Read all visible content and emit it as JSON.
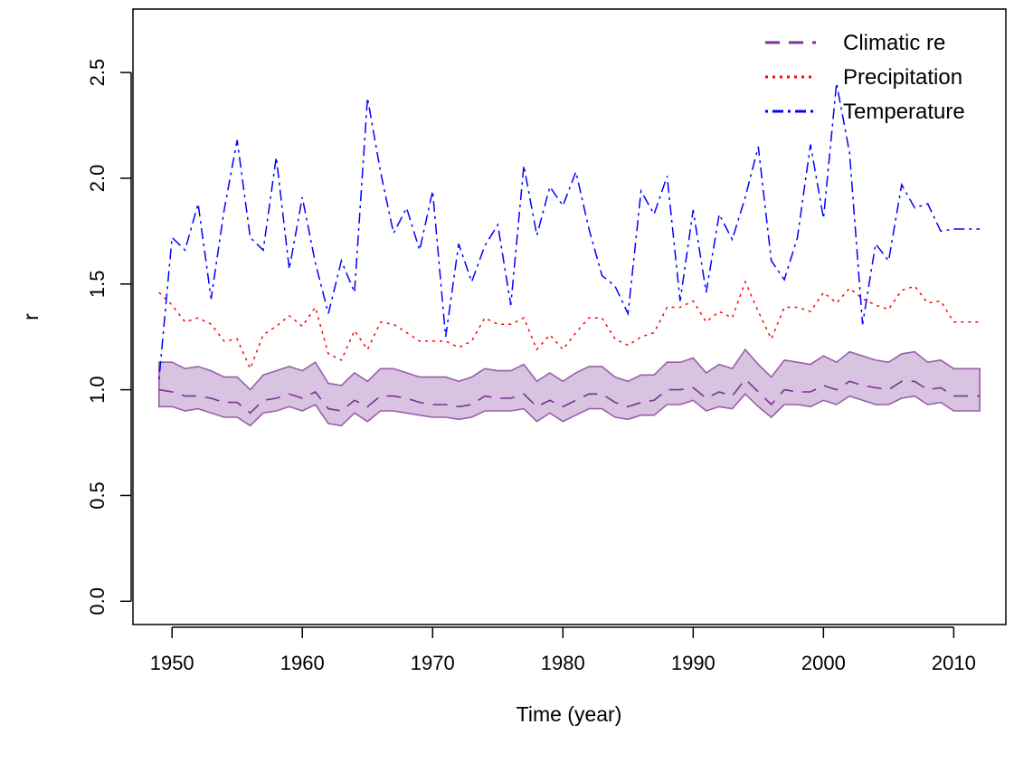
{
  "chart_data": {
    "type": "line",
    "xlabel": "Time (year)",
    "ylabel": "r",
    "xlim": [
      1947,
      2014
    ],
    "ylim": [
      -0.11,
      2.8
    ],
    "x_ticks": [
      1950,
      1960,
      1970,
      1980,
      1990,
      2000,
      2010
    ],
    "y_ticks": [
      0.0,
      0.5,
      1.0,
      1.5,
      2.0,
      2.5
    ],
    "x_tick_labels": [
      "1950",
      "1960",
      "1970",
      "1980",
      "1990",
      "2000",
      "2010"
    ],
    "y_tick_labels": [
      "0.0",
      "0.5",
      "1.0",
      "1.5",
      "2.0",
      "2.5"
    ],
    "grid": false,
    "legend_position": "top-right",
    "x": [
      1949,
      1950,
      1951,
      1952,
      1953,
      1954,
      1955,
      1956,
      1957,
      1958,
      1959,
      1960,
      1961,
      1962,
      1963,
      1964,
      1965,
      1966,
      1967,
      1968,
      1969,
      1970,
      1971,
      1972,
      1973,
      1974,
      1975,
      1976,
      1977,
      1978,
      1979,
      1980,
      1981,
      1982,
      1983,
      1984,
      1985,
      1986,
      1987,
      1988,
      1989,
      1990,
      1991,
      1992,
      1993,
      1994,
      1995,
      1996,
      1997,
      1998,
      1999,
      2000,
      2001,
      2002,
      2003,
      2004,
      2005,
      2006,
      2007,
      2008,
      2009,
      2010,
      2011,
      2012
    ],
    "series": [
      {
        "name": "Climatic re",
        "color": "#7B3294",
        "dash": "dashed",
        "values": [
          1.0,
          0.99,
          0.97,
          0.97,
          0.96,
          0.94,
          0.94,
          0.89,
          0.95,
          0.96,
          0.98,
          0.96,
          0.99,
          0.91,
          0.9,
          0.95,
          0.92,
          0.97,
          0.97,
          0.96,
          0.94,
          0.93,
          0.93,
          0.92,
          0.93,
          0.97,
          0.96,
          0.96,
          0.98,
          0.92,
          0.95,
          0.92,
          0.95,
          0.98,
          0.98,
          0.94,
          0.92,
          0.94,
          0.95,
          1.0,
          1.0,
          1.01,
          0.96,
          0.99,
          0.97,
          1.05,
          0.99,
          0.93,
          1.0,
          0.99,
          0.99,
          1.02,
          1.0,
          1.04,
          1.02,
          1.01,
          1.0,
          1.04,
          1.04,
          1.0,
          1.01,
          0.97,
          0.97,
          0.97
        ],
        "lower": [
          0.92,
          0.92,
          0.9,
          0.91,
          0.89,
          0.87,
          0.87,
          0.83,
          0.89,
          0.9,
          0.92,
          0.9,
          0.93,
          0.84,
          0.83,
          0.89,
          0.85,
          0.9,
          0.9,
          0.89,
          0.88,
          0.87,
          0.87,
          0.86,
          0.87,
          0.9,
          0.9,
          0.9,
          0.91,
          0.85,
          0.89,
          0.85,
          0.88,
          0.91,
          0.91,
          0.87,
          0.86,
          0.88,
          0.88,
          0.93,
          0.93,
          0.95,
          0.9,
          0.92,
          0.91,
          0.98,
          0.92,
          0.87,
          0.93,
          0.93,
          0.92,
          0.95,
          0.93,
          0.97,
          0.95,
          0.93,
          0.93,
          0.96,
          0.97,
          0.93,
          0.94,
          0.9,
          0.9,
          0.9
        ],
        "upper": [
          1.13,
          1.13,
          1.1,
          1.11,
          1.09,
          1.06,
          1.06,
          1.0,
          1.07,
          1.09,
          1.11,
          1.09,
          1.13,
          1.03,
          1.02,
          1.08,
          1.04,
          1.1,
          1.1,
          1.08,
          1.06,
          1.06,
          1.06,
          1.04,
          1.06,
          1.1,
          1.09,
          1.09,
          1.12,
          1.04,
          1.08,
          1.04,
          1.08,
          1.11,
          1.11,
          1.06,
          1.04,
          1.07,
          1.07,
          1.13,
          1.13,
          1.15,
          1.08,
          1.12,
          1.1,
          1.19,
          1.12,
          1.06,
          1.14,
          1.13,
          1.12,
          1.16,
          1.13,
          1.18,
          1.16,
          1.14,
          1.13,
          1.17,
          1.18,
          1.13,
          1.14,
          1.1,
          1.1,
          1.1
        ]
      },
      {
        "name": "Precipitation",
        "color": "#FF0000",
        "dash": "dotted",
        "values": [
          1.46,
          1.4,
          1.32,
          1.34,
          1.31,
          1.23,
          1.24,
          1.1,
          1.26,
          1.3,
          1.35,
          1.3,
          1.39,
          1.17,
          1.14,
          1.28,
          1.19,
          1.32,
          1.31,
          1.27,
          1.23,
          1.23,
          1.23,
          1.2,
          1.23,
          1.34,
          1.31,
          1.31,
          1.34,
          1.19,
          1.26,
          1.19,
          1.27,
          1.34,
          1.34,
          1.24,
          1.21,
          1.25,
          1.27,
          1.39,
          1.39,
          1.42,
          1.32,
          1.37,
          1.34,
          1.51,
          1.37,
          1.24,
          1.39,
          1.39,
          1.37,
          1.46,
          1.41,
          1.48,
          1.43,
          1.4,
          1.38,
          1.47,
          1.49,
          1.41,
          1.42,
          1.32,
          1.32,
          1.32
        ]
      },
      {
        "name": "Temperature",
        "color": "#0000FF",
        "dash": "dotdash",
        "values": [
          1.05,
          1.72,
          1.66,
          1.88,
          1.43,
          1.85,
          2.18,
          1.72,
          1.66,
          2.1,
          1.57,
          1.91,
          1.6,
          1.36,
          1.61,
          1.46,
          2.38,
          2.03,
          1.74,
          1.86,
          1.66,
          1.94,
          1.25,
          1.69,
          1.51,
          1.68,
          1.78,
          1.4,
          2.06,
          1.73,
          1.96,
          1.87,
          2.03,
          1.76,
          1.54,
          1.49,
          1.36,
          1.94,
          1.83,
          2.01,
          1.42,
          1.85,
          1.46,
          1.83,
          1.71,
          1.91,
          2.15,
          1.61,
          1.52,
          1.72,
          2.16,
          1.81,
          2.45,
          2.12,
          1.31,
          1.69,
          1.61,
          1.97,
          1.86,
          1.88,
          1.75,
          1.76,
          1.76,
          1.76
        ]
      }
    ]
  }
}
